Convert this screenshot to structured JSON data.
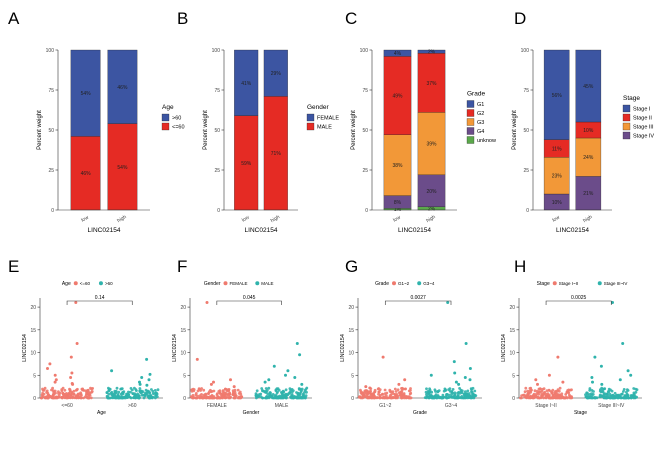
{
  "chart_data": [
    {
      "panel": "A",
      "type": "bar",
      "stacked": true,
      "categories": [
        "low",
        "high"
      ],
      "xlabel": "LINC02154",
      "ylabel": "Percent weight",
      "yticks": [
        "0",
        "25",
        "50",
        "75",
        "100"
      ],
      "ylim": [
        0,
        100
      ],
      "legend_title": "Age",
      "legend_position": "right",
      "series": [
        {
          "name": "<=60",
          "color": "#e52b24",
          "values": [
            46,
            54
          ],
          "labels": [
            "46%",
            "54%"
          ]
        },
        {
          "name": ">60",
          "color": "#3c55a2",
          "values": [
            54,
            46
          ],
          "labels": [
            "54%",
            "46%"
          ]
        }
      ]
    },
    {
      "panel": "B",
      "type": "bar",
      "stacked": true,
      "categories": [
        "low",
        "high"
      ],
      "xlabel": "LINC02154",
      "ylabel": "Percent weight",
      "yticks": [
        "0",
        "25",
        "50",
        "75",
        "100"
      ],
      "ylim": [
        0,
        100
      ],
      "legend_title": "Gender",
      "legend_position": "right",
      "series": [
        {
          "name": "MALE",
          "color": "#e52b24",
          "values": [
            59,
            71
          ],
          "labels": [
            "59%",
            "71%"
          ]
        },
        {
          "name": "FEMALE",
          "color": "#3c55a2",
          "values": [
            41,
            29
          ],
          "labels": [
            "41%",
            "29%"
          ]
        }
      ]
    },
    {
      "panel": "C",
      "type": "bar",
      "stacked": true,
      "categories": [
        "low",
        "high"
      ],
      "xlabel": "LINC02154",
      "ylabel": "Percent weight",
      "yticks": [
        "0",
        "25",
        "50",
        "75",
        "100"
      ],
      "ylim": [
        0,
        100
      ],
      "legend_title": "Grade",
      "legend_position": "right",
      "series": [
        {
          "name": "unknow",
          "color": "#5ba84b",
          "values": [
            1,
            2
          ],
          "labels": [
            "1%",
            "2%"
          ]
        },
        {
          "name": "G4",
          "color": "#6b4c8a",
          "values": [
            8,
            20
          ],
          "labels": [
            "8%",
            "20%"
          ]
        },
        {
          "name": "G3",
          "color": "#f29838",
          "values": [
            38,
            39
          ],
          "labels": [
            "38%",
            "39%"
          ]
        },
        {
          "name": "G2",
          "color": "#e52b24",
          "values": [
            49,
            37
          ],
          "labels": [
            "49%",
            "37%"
          ]
        },
        {
          "name": "G1",
          "color": "#3c55a2",
          "values": [
            4,
            2
          ],
          "labels": [
            "4%",
            "2%"
          ]
        }
      ]
    },
    {
      "panel": "D",
      "type": "bar",
      "stacked": true,
      "categories": [
        "low",
        "high"
      ],
      "xlabel": "LINC02154",
      "ylabel": "Percent weight",
      "yticks": [
        "0",
        "25",
        "50",
        "75",
        "100"
      ],
      "ylim": [
        0,
        100
      ],
      "legend_title": "Stage",
      "legend_position": "right",
      "series": [
        {
          "name": "Stage IV",
          "color": "#6b4c8a",
          "values": [
            10,
            21
          ],
          "labels": [
            "10%",
            "21%"
          ]
        },
        {
          "name": "Stage III",
          "color": "#f29838",
          "values": [
            23,
            24
          ],
          "labels": [
            "23%",
            "24%"
          ]
        },
        {
          "name": "Stage II",
          "color": "#e52b24",
          "values": [
            11,
            10
          ],
          "labels": [
            "11%",
            "10%"
          ]
        },
        {
          "name": "Stage I",
          "color": "#3c55a2",
          "values": [
            56,
            45
          ],
          "labels": [
            "56%",
            "45%"
          ]
        }
      ]
    },
    {
      "panel": "E",
      "type": "scatter",
      "groups": [
        "<=60",
        ">60"
      ],
      "colors": [
        "#ef7a6e",
        "#2fb3ac"
      ],
      "xlabel": "Age",
      "ylabel": "LINC02154",
      "yticks": [
        "0",
        "5",
        "10",
        "15",
        "20"
      ],
      "ylim": [
        0,
        22
      ],
      "legend_title": "Age",
      "legend_position": "top",
      "pvalue": "0.14",
      "outliers": [
        [
          21.0,
          12.0,
          9.0,
          7.5,
          6.5,
          5.5,
          5.0,
          4.5,
          4.0,
          3.5,
          3.2,
          3.0
        ],
        [
          8.5,
          6.0,
          5.2,
          4.5,
          4.0,
          3.5,
          3.0,
          2.8
        ]
      ]
    },
    {
      "panel": "F",
      "type": "scatter",
      "groups": [
        "FEMALE",
        "MALE"
      ],
      "colors": [
        "#ef7a6e",
        "#2fb3ac"
      ],
      "xlabel": "Gender",
      "ylabel": "LINC02154",
      "yticks": [
        "0",
        "5",
        "10",
        "15",
        "20"
      ],
      "ylim": [
        0,
        22
      ],
      "legend_title": "Gender",
      "legend_position": "top",
      "pvalue": "0.045",
      "outliers": [
        [
          21.0,
          8.5,
          4.0,
          3.5,
          3.0,
          2.5
        ],
        [
          12.0,
          9.5,
          7.0,
          6.0,
          5.0,
          4.5,
          4.0,
          3.5,
          3.0
        ]
      ]
    },
    {
      "panel": "G",
      "type": "scatter",
      "groups": [
        "G1~2",
        "G3~4"
      ],
      "colors": [
        "#ef7a6e",
        "#2fb3ac"
      ],
      "xlabel": "Grade",
      "ylabel": "LINC02154",
      "yticks": [
        "0",
        "5",
        "10",
        "15",
        "20"
      ],
      "ylim": [
        0,
        22
      ],
      "legend_title": "Grade",
      "legend_position": "top",
      "pvalue": "0.0027",
      "outliers": [
        [
          9.0,
          4.0,
          3.0,
          2.5,
          2.2
        ],
        [
          21.0,
          12.0,
          8.0,
          6.5,
          5.5,
          5.0,
          4.5,
          4.0,
          3.5,
          3.0
        ]
      ]
    },
    {
      "panel": "H",
      "type": "scatter",
      "groups": [
        "Stage I~II",
        "Stage III~IV"
      ],
      "colors": [
        "#ef7a6e",
        "#2fb3ac"
      ],
      "xlabel": "Stage",
      "ylabel": "LINC02154",
      "yticks": [
        "0",
        "5",
        "10",
        "15",
        "20"
      ],
      "ylim": [
        0,
        22
      ],
      "legend_title": "Stage",
      "legend_position": "top",
      "pvalue": "0.0025",
      "outliers": [
        [
          9.0,
          5.0,
          4.0,
          3.5,
          3.0
        ],
        [
          21.0,
          12.0,
          9.0,
          7.0,
          6.0,
          5.0,
          4.5,
          4.0,
          3.5,
          3.0
        ]
      ]
    }
  ]
}
